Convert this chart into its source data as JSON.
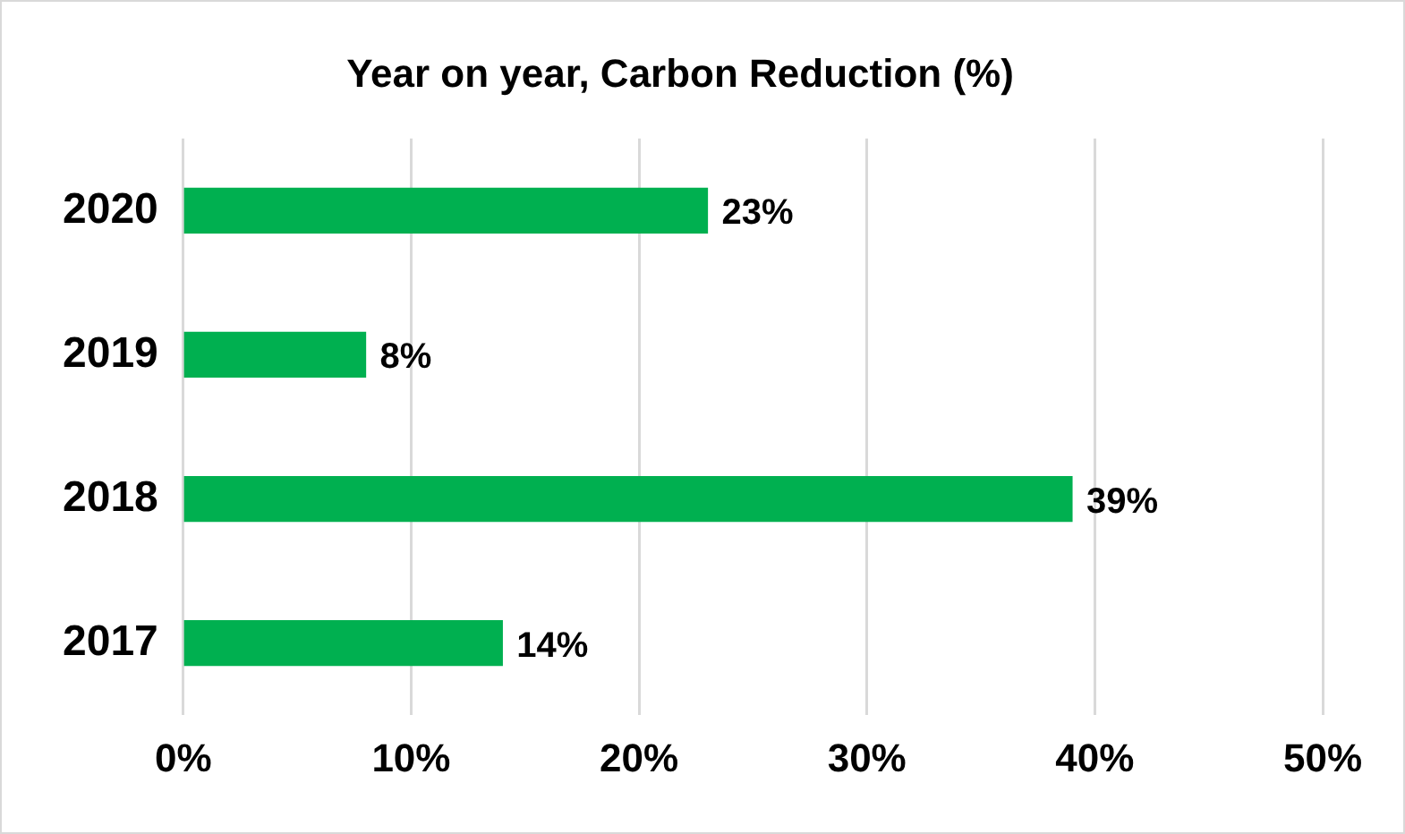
{
  "chart_data": {
    "type": "bar",
    "orientation": "horizontal",
    "title": "Year on year, Carbon Reduction (%)",
    "categories": [
      "2020",
      "2019",
      "2018",
      "2017"
    ],
    "values": [
      23,
      8,
      39,
      14
    ],
    "value_labels": [
      "23%",
      "8%",
      "39%",
      "14%"
    ],
    "color": "#00b050",
    "xlim": [
      0,
      50
    ],
    "xticks": [
      {
        "value": 0,
        "label": "0%"
      },
      {
        "value": 10,
        "label": "10%"
      },
      {
        "value": 20,
        "label": "20%"
      },
      {
        "value": 30,
        "label": "30%"
      },
      {
        "value": 40,
        "label": "40%"
      },
      {
        "value": 50,
        "label": "50%"
      }
    ],
    "grid": "x"
  }
}
